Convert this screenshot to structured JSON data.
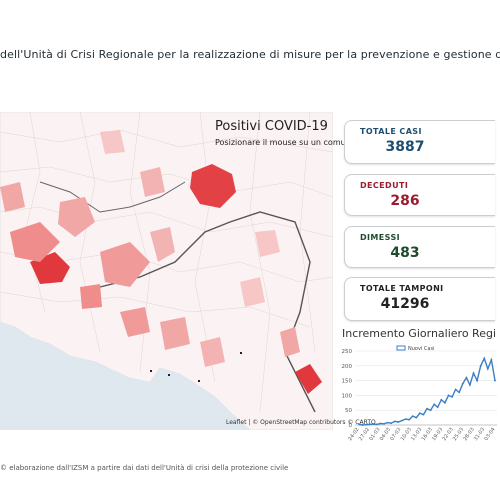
{
  "header_text": "dell'Unità di Crisi Regionale per la realizzazione di misure per la prevenzione e gestione dell'em",
  "map": {
    "title": "Positivi COVID-19",
    "subtitle": "Posizionare il mouse su un comune",
    "credit": "Leaflet | © OpenStreetMap contributors © CARTO"
  },
  "stats": {
    "totale_casi": {
      "label": "TOTALE CASI",
      "value": "3887",
      "color": "#1f4e6e"
    },
    "deceduti": {
      "label": "DECEDUTI",
      "value": "286",
      "color": "#9b1b2f"
    },
    "dimessi": {
      "label": "DIMESSI",
      "value": "483",
      "color": "#1e4a2e"
    },
    "totale_tamponi": {
      "label": "TOTALE TAMPONI",
      "value": "41296",
      "color": "#222222"
    }
  },
  "chart": {
    "title": "Incremento Giornaliero Regi",
    "legend": "Nuovi Casi",
    "series_color": "#3b7fc4"
  },
  "chart_data": {
    "type": "line",
    "ylim": [
      0,
      250
    ],
    "yticks": [
      0,
      50,
      100,
      150,
      200,
      250
    ],
    "xticks": [
      "24-02",
      "27-02",
      "01-03",
      "04-03",
      "07-03",
      "10-03",
      "13-03",
      "16-03",
      "19-03",
      "22-03",
      "25-03",
      "28-03",
      "31-03",
      "03-04"
    ],
    "series": [
      {
        "name": "Nuovi Casi",
        "values": [
          2,
          0,
          1,
          2,
          3,
          2,
          5,
          4,
          8,
          6,
          12,
          10,
          15,
          20,
          18,
          30,
          25,
          40,
          35,
          55,
          50,
          70,
          60,
          85,
          75,
          100,
          95,
          120,
          110,
          140,
          160,
          135,
          175,
          150,
          200,
          225,
          190,
          220,
          150
        ]
      }
    ]
  },
  "footnote": "© elaborazione dall'IZSM a partire dai dati dell'Unità di crisi della protezione civile"
}
